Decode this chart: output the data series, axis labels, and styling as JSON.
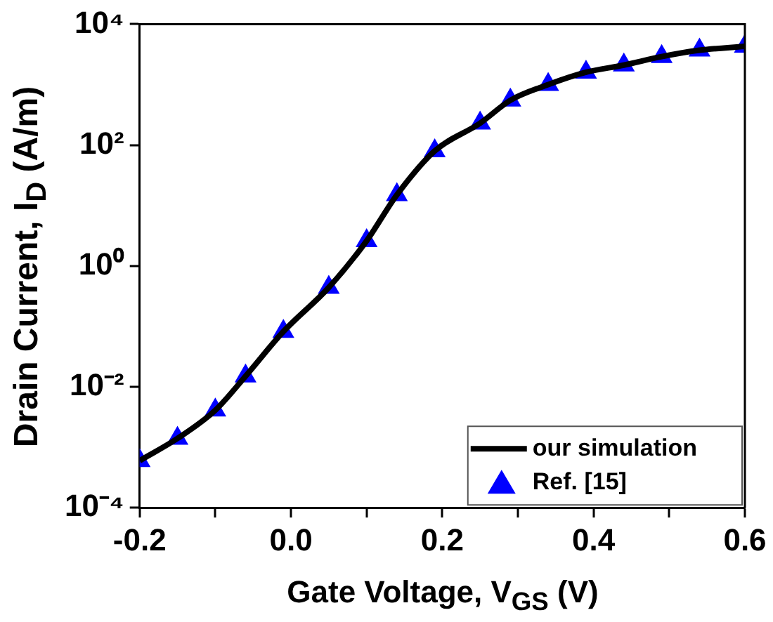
{
  "chart_data": {
    "type": "line",
    "xlabel": "Gate Voltage, V$_{GS}$ (V)",
    "ylabel": "Drain Current, I$_{D}$ (A/m)",
    "log": "y",
    "grid": false,
    "legend": "bottom right",
    "xlim": [
      -0.2,
      0.6
    ],
    "xticks": [
      -0.2,
      {
        "value": -0.1,
        "label": null
      },
      "0.0",
      {
        "value": 0.1,
        "label": null
      },
      0.2,
      {
        "value": 0.3,
        "label": null
      },
      0.4,
      {
        "value": 0.5,
        "label": null
      },
      0.6
    ],
    "ylim": [
      0.0001,
      10000
    ],
    "yticks": [
      {
        "value": 0.0001,
        "label": "10⁻⁴"
      },
      {
        "value": 0.01,
        "label": "10⁻²"
      },
      {
        "value": 1,
        "label": "10⁰"
      },
      {
        "value": 100,
        "label": "10²"
      },
      {
        "value": 10000,
        "label": "10⁴"
      }
    ],
    "series": [
      {
        "name": "our simulation",
        "marker": "none",
        "line_style": "solid",
        "color": "#000000",
        "x": [
          -0.2,
          -0.15,
          -0.1,
          -0.06,
          -0.01,
          0.05,
          0.1,
          0.14,
          0.19,
          0.25,
          0.29,
          0.34,
          0.39,
          0.44,
          0.49,
          0.54,
          0.6
        ],
        "values": [
          0.0006,
          0.0014,
          0.0041,
          0.015,
          0.082,
          0.44,
          2.6,
          15,
          80,
          230,
          550,
          1000,
          1600,
          2100,
          2900,
          3700,
          4300
        ]
      },
      {
        "name": "Ref. [15]",
        "type": "scatter",
        "marker": "triangle",
        "color": "#0000ff",
        "x": [
          -0.2,
          -0.15,
          -0.1,
          -0.06,
          -0.01,
          0.05,
          0.1,
          0.14,
          0.19,
          0.25,
          0.29,
          0.34,
          0.39,
          0.44,
          0.49,
          0.54,
          0.6
        ],
        "values": [
          0.0006,
          0.0014,
          0.0041,
          0.015,
          0.082,
          0.44,
          2.6,
          15,
          80,
          230,
          550,
          1000,
          1600,
          2100,
          2900,
          3700,
          4300
        ]
      }
    ]
  }
}
